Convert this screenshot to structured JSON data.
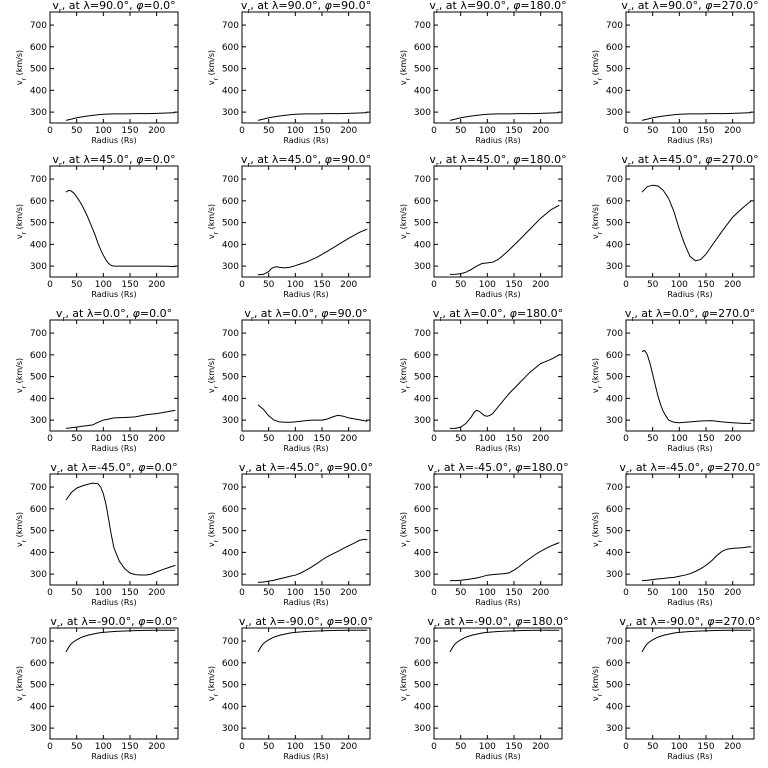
{
  "xlabel": "Radius (Rs)",
  "ylabel": "v_r (km/s)",
  "xlim": [
    0,
    240
  ],
  "ylim": [
    250,
    760
  ],
  "xticks": [
    0,
    50,
    100,
    150,
    200
  ],
  "yticks": [
    300,
    400,
    500,
    600,
    700
  ],
  "chart_data": [
    {
      "type": "line",
      "title": "v_r at λ=90.0°, φ=0.0°",
      "lat": "90.0",
      "lon": "0.0",
      "x": [
        30,
        40,
        50,
        60,
        70,
        80,
        90,
        100,
        120,
        140,
        160,
        180,
        200,
        220,
        235
      ],
      "y": [
        262,
        268,
        274,
        278,
        282,
        285,
        288,
        290,
        292,
        292,
        293,
        293,
        294,
        296,
        298
      ]
    },
    {
      "type": "line",
      "title": "v_r at λ=90.0°, φ=90.0°",
      "lat": "90.0",
      "lon": "90.0",
      "x": [
        30,
        40,
        50,
        60,
        70,
        80,
        90,
        100,
        120,
        140,
        160,
        180,
        200,
        220,
        235
      ],
      "y": [
        262,
        268,
        274,
        278,
        282,
        285,
        288,
        290,
        292,
        292,
        293,
        293,
        294,
        296,
        298
      ]
    },
    {
      "type": "line",
      "title": "v_r at λ=90.0°, φ=180.0°",
      "lat": "90.0",
      "lon": "180.0",
      "x": [
        30,
        40,
        50,
        60,
        70,
        80,
        90,
        100,
        120,
        140,
        160,
        180,
        200,
        220,
        235
      ],
      "y": [
        262,
        268,
        274,
        278,
        282,
        285,
        288,
        290,
        292,
        292,
        293,
        293,
        294,
        296,
        298
      ]
    },
    {
      "type": "line",
      "title": "v_r at λ=90.0°, φ=270.0°",
      "lat": "90.0",
      "lon": "270.0",
      "x": [
        30,
        40,
        50,
        60,
        70,
        80,
        90,
        100,
        120,
        140,
        160,
        180,
        200,
        220,
        235
      ],
      "y": [
        262,
        268,
        274,
        278,
        282,
        285,
        288,
        290,
        292,
        292,
        293,
        293,
        294,
        296,
        298
      ]
    },
    {
      "type": "line",
      "title": "v_r at λ=45.0°, φ=0.0°",
      "lat": "45.0",
      "lon": "0.0",
      "x": [
        30,
        35,
        40,
        45,
        50,
        55,
        60,
        65,
        70,
        75,
        80,
        85,
        90,
        95,
        100,
        105,
        110,
        115,
        120,
        140,
        160,
        180,
        200,
        220,
        235
      ],
      "y": [
        640,
        648,
        645,
        635,
        618,
        600,
        580,
        555,
        530,
        500,
        470,
        440,
        405,
        375,
        350,
        328,
        312,
        303,
        300,
        300,
        300,
        300,
        300,
        299,
        298
      ]
    },
    {
      "type": "line",
      "title": "v_r at λ=45.0°, φ=90.0°",
      "lat": "45.0",
      "lon": "90.0",
      "x": [
        30,
        40,
        50,
        55,
        60,
        65,
        70,
        80,
        90,
        100,
        110,
        120,
        140,
        160,
        180,
        200,
        220,
        235
      ],
      "y": [
        260,
        262,
        275,
        288,
        295,
        297,
        295,
        292,
        295,
        302,
        310,
        318,
        340,
        368,
        398,
        428,
        455,
        470
      ]
    },
    {
      "type": "line",
      "title": "v_r at λ=45.0°, φ=180.0°",
      "lat": "45.0",
      "lon": "180.0",
      "x": [
        30,
        40,
        50,
        60,
        70,
        80,
        90,
        100,
        110,
        120,
        130,
        140,
        160,
        180,
        200,
        220,
        235
      ],
      "y": [
        262,
        263,
        265,
        272,
        285,
        300,
        312,
        315,
        318,
        330,
        350,
        372,
        420,
        470,
        520,
        560,
        580
      ]
    },
    {
      "type": "line",
      "title": "v_r at λ=45.0°, φ=270.0°",
      "lat": "45.0",
      "lon": "270.0",
      "x": [
        30,
        40,
        50,
        60,
        70,
        80,
        90,
        100,
        110,
        120,
        130,
        140,
        150,
        160,
        180,
        200,
        220,
        235
      ],
      "y": [
        640,
        665,
        672,
        668,
        648,
        610,
        550,
        470,
        400,
        345,
        325,
        330,
        355,
        390,
        460,
        525,
        570,
        600
      ]
    },
    {
      "type": "line",
      "title": "v_r at λ=0.0°, φ=0.0°",
      "lat": "0.0",
      "lon": "0.0",
      "x": [
        30,
        40,
        50,
        60,
        70,
        80,
        90,
        100,
        110,
        120,
        140,
        160,
        180,
        200,
        220,
        235
      ],
      "y": [
        262,
        265,
        268,
        272,
        275,
        278,
        290,
        300,
        305,
        310,
        312,
        315,
        325,
        330,
        338,
        345
      ]
    },
    {
      "type": "line",
      "title": "v_r at λ=0.0°, φ=90.0°",
      "lat": "0.0",
      "lon": "90.0",
      "x": [
        30,
        40,
        50,
        60,
        70,
        80,
        90,
        100,
        110,
        120,
        130,
        140,
        150,
        160,
        170,
        180,
        190,
        200,
        220,
        235
      ],
      "y": [
        370,
        350,
        320,
        300,
        292,
        290,
        290,
        292,
        295,
        298,
        300,
        300,
        300,
        305,
        315,
        322,
        318,
        310,
        302,
        295
      ]
    },
    {
      "type": "line",
      "title": "v_r at λ=0.0°, φ=180.0°",
      "lat": "0.0",
      "lon": "180.0",
      "x": [
        30,
        40,
        50,
        60,
        70,
        75,
        80,
        85,
        90,
        95,
        100,
        105,
        110,
        120,
        140,
        160,
        180,
        200,
        220,
        235
      ],
      "y": [
        262,
        262,
        268,
        285,
        315,
        335,
        345,
        340,
        330,
        320,
        318,
        322,
        330,
        360,
        420,
        470,
        520,
        560,
        580,
        600
      ]
    },
    {
      "type": "line",
      "title": "v_r at λ=0.0°, φ=270.0°",
      "lat": "0.0",
      "lon": "270.0",
      "x": [
        30,
        35,
        40,
        45,
        50,
        55,
        60,
        65,
        70,
        75,
        80,
        90,
        100,
        120,
        140,
        160,
        180,
        200,
        220,
        235
      ],
      "y": [
        615,
        620,
        600,
        560,
        510,
        460,
        410,
        370,
        340,
        318,
        300,
        290,
        288,
        292,
        296,
        298,
        292,
        288,
        285,
        285
      ]
    },
    {
      "type": "line",
      "title": "v_r at λ=-45.0°, φ=0.0°",
      "lat": "-45.0",
      "lon": "0.0",
      "x": [
        30,
        40,
        50,
        60,
        70,
        80,
        90,
        95,
        100,
        105,
        110,
        115,
        120,
        130,
        140,
        150,
        160,
        170,
        180,
        190,
        200,
        210,
        220,
        235
      ],
      "y": [
        640,
        675,
        695,
        705,
        712,
        718,
        715,
        700,
        670,
        620,
        550,
        480,
        420,
        360,
        325,
        305,
        298,
        296,
        296,
        300,
        310,
        320,
        328,
        340
      ]
    },
    {
      "type": "line",
      "title": "v_r at λ=-45.0°, φ=90.0°",
      "lat": "-45.0",
      "lon": "90.0",
      "x": [
        30,
        40,
        50,
        60,
        70,
        80,
        90,
        100,
        110,
        120,
        130,
        140,
        150,
        160,
        170,
        180,
        190,
        200,
        210,
        220,
        230,
        235
      ],
      "y": [
        262,
        264,
        268,
        272,
        278,
        284,
        290,
        295,
        305,
        318,
        332,
        348,
        365,
        380,
        393,
        405,
        418,
        430,
        442,
        455,
        460,
        458
      ]
    },
    {
      "type": "line",
      "title": "v_r at λ=-45.0°, φ=180.0°",
      "lat": "-45.0",
      "lon": "180.0",
      "x": [
        30,
        40,
        50,
        60,
        70,
        80,
        90,
        100,
        110,
        120,
        130,
        140,
        150,
        160,
        170,
        180,
        190,
        200,
        210,
        220,
        230,
        235
      ],
      "y": [
        270,
        270,
        272,
        275,
        278,
        282,
        288,
        295,
        298,
        300,
        302,
        305,
        318,
        335,
        355,
        372,
        390,
        405,
        418,
        430,
        440,
        445
      ]
    },
    {
      "type": "line",
      "title": "v_r at λ=-45.0°, φ=270.0°",
      "lat": "-45.0",
      "lon": "270.0",
      "x": [
        30,
        40,
        50,
        60,
        70,
        80,
        90,
        100,
        110,
        120,
        130,
        140,
        150,
        160,
        170,
        180,
        190,
        200,
        210,
        220,
        230,
        235
      ],
      "y": [
        270,
        272,
        275,
        278,
        280,
        283,
        285,
        290,
        295,
        302,
        312,
        325,
        340,
        360,
        385,
        405,
        415,
        418,
        420,
        422,
        425,
        425
      ]
    },
    {
      "type": "line",
      "title": "v_r at λ=-90.0°, φ=0.0°",
      "lat": "-90.0",
      "lon": "0.0",
      "x": [
        30,
        35,
        40,
        45,
        50,
        60,
        70,
        80,
        90,
        100,
        120,
        140,
        160,
        180,
        200,
        220,
        235
      ],
      "y": [
        650,
        672,
        688,
        698,
        706,
        718,
        726,
        732,
        737,
        740,
        744,
        746,
        748,
        749,
        750,
        750,
        750
      ]
    },
    {
      "type": "line",
      "title": "v_r at λ=-90.0°, φ=90.0°",
      "lat": "-90.0",
      "lon": "90.0",
      "x": [
        30,
        35,
        40,
        45,
        50,
        60,
        70,
        80,
        90,
        100,
        120,
        140,
        160,
        180,
        200,
        220,
        235
      ],
      "y": [
        650,
        672,
        688,
        698,
        706,
        718,
        726,
        732,
        737,
        740,
        744,
        746,
        748,
        749,
        750,
        750,
        750
      ]
    },
    {
      "type": "line",
      "title": "v_r at λ=-90.0°, φ=180.0°",
      "lat": "-90.0",
      "lon": "180.0",
      "x": [
        30,
        35,
        40,
        45,
        50,
        60,
        70,
        80,
        90,
        100,
        120,
        140,
        160,
        180,
        200,
        220,
        235
      ],
      "y": [
        650,
        672,
        688,
        698,
        706,
        718,
        726,
        732,
        737,
        740,
        744,
        746,
        748,
        749,
        750,
        750,
        750
      ]
    },
    {
      "type": "line",
      "title": "v_r at λ=-90.0°, φ=270.0°",
      "lat": "-90.0",
      "lon": "270.0",
      "x": [
        30,
        35,
        40,
        45,
        50,
        60,
        70,
        80,
        90,
        100,
        120,
        140,
        160,
        180,
        200,
        220,
        235
      ],
      "y": [
        650,
        672,
        688,
        698,
        706,
        718,
        726,
        732,
        737,
        740,
        744,
        746,
        748,
        749,
        750,
        750,
        750
      ]
    }
  ]
}
